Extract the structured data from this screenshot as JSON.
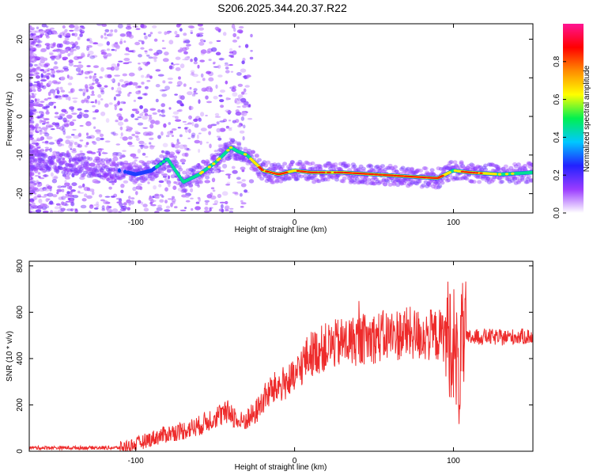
{
  "title": "S206.2025.344.20.37.R22",
  "colors": {
    "snr_line": "#ee2b2b",
    "spectrogram_palette": [
      "#ffffff",
      "#9a3cff",
      "#2222ff",
      "#00c8ff",
      "#00f050",
      "#ffff00",
      "#ff8c00",
      "#ff0000",
      "#ff1493"
    ]
  },
  "chart_data": [
    {
      "type": "heatmap",
      "xlabel": "Height of straight line (km)",
      "ylabel": "Frequency (Hz)",
      "xlim": [
        -167,
        150
      ],
      "ylim": [
        -25,
        24
      ],
      "x_ticks": [
        -100,
        0,
        100
      ],
      "y_ticks": [
        -20,
        -10,
        0,
        10,
        20
      ],
      "grid": false,
      "ridge": {
        "x": [
          -167,
          -150,
          -130,
          -110,
          -100,
          -90,
          -80,
          -70,
          -60,
          -50,
          -40,
          -36,
          -30,
          -20,
          -10,
          0,
          10,
          30,
          50,
          70,
          90,
          100,
          110,
          130,
          150
        ],
        "frequency": [
          -11,
          -12,
          -13,
          -14,
          -15,
          -14,
          -11,
          -17,
          -15,
          -12,
          -8,
          -9,
          -10,
          -14,
          -15,
          -14,
          -14.5,
          -14.5,
          -15,
          -15.5,
          -16,
          -14,
          -14.5,
          -15,
          -14.5
        ],
        "amplitude": [
          0.2,
          0.18,
          0.15,
          0.2,
          0.28,
          0.35,
          0.45,
          0.5,
          0.55,
          0.6,
          0.55,
          0.6,
          0.62,
          0.78,
          0.85,
          0.8,
          0.88,
          0.88,
          0.85,
          0.9,
          0.95,
          0.6,
          0.92,
          0.55,
          0.5
        ]
      },
      "colorbar": {
        "label": "Normalized spectral amplitude",
        "range": [
          0,
          1
        ],
        "ticks": [
          0.0,
          0.2,
          0.4,
          0.6,
          0.8
        ],
        "tick_labels": [
          "0.0",
          "0.2",
          "0.4",
          "0.6",
          "0.8"
        ]
      }
    },
    {
      "type": "line",
      "xlabel": "Height of straight line (km)",
      "ylabel": "SNR (10 * v/v)",
      "xlim": [
        -167,
        150
      ],
      "ylim": [
        0,
        820
      ],
      "x_ticks": [
        -100,
        0,
        100
      ],
      "y_ticks": [
        0,
        200,
        400,
        600,
        800
      ],
      "grid": false,
      "series": [
        {
          "x": [
            -167,
            -140,
            -110,
            -100,
            -90,
            -80,
            -70,
            -60,
            -50,
            -40,
            -35,
            -30,
            -25,
            -20,
            -15,
            -10,
            -5,
            0,
            5,
            10,
            20,
            30,
            40,
            50,
            60,
            70,
            80,
            90,
            95,
            100,
            103,
            106,
            110,
            120,
            130,
            140,
            150
          ],
          "y": [
            15,
            15,
            15,
            30,
            55,
            75,
            90,
            110,
            150,
            170,
            120,
            140,
            160,
            220,
            260,
            280,
            300,
            310,
            380,
            420,
            450,
            470,
            480,
            490,
            500,
            510,
            500,
            500,
            500,
            480,
            320,
            480,
            490,
            495,
            490,
            495,
            495
          ]
        }
      ]
    }
  ]
}
